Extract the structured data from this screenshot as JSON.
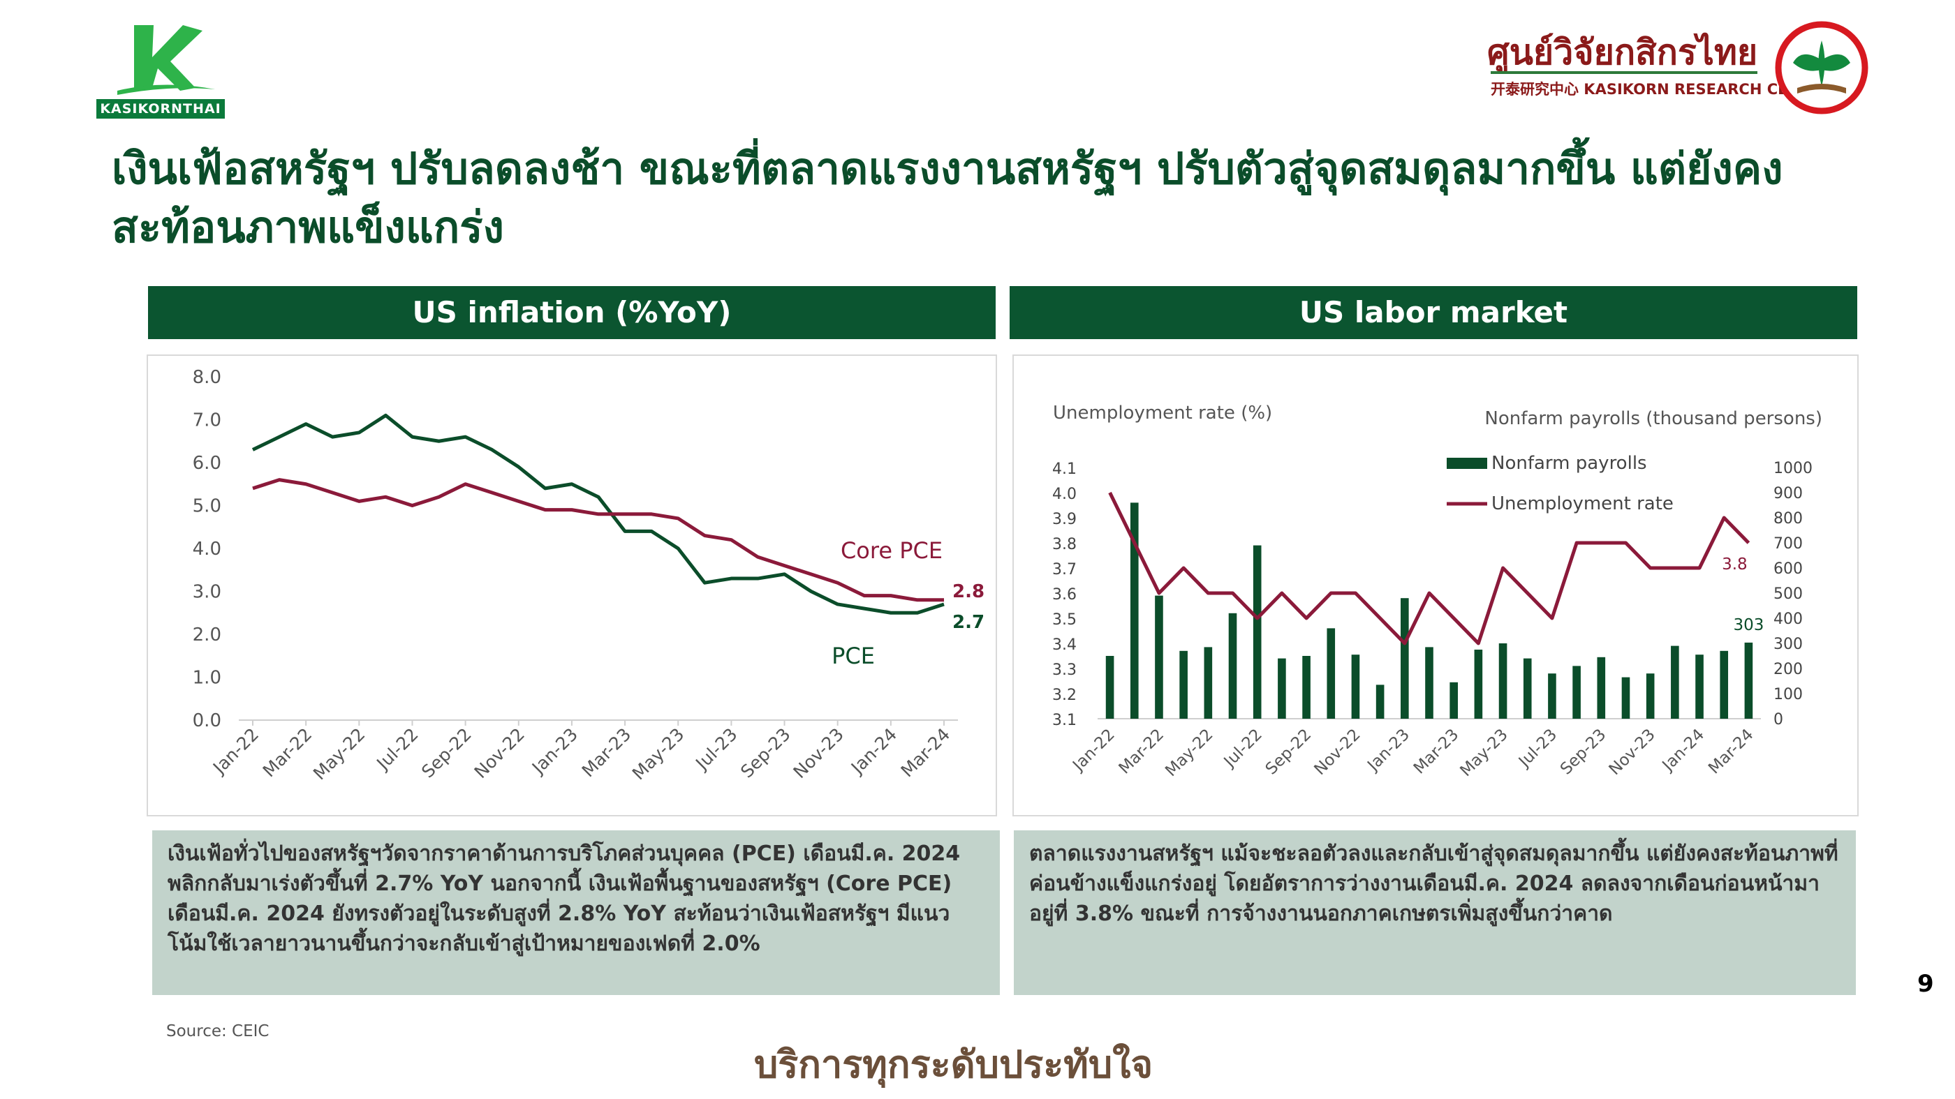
{
  "brand": {
    "left_logo_text": "KASIKORNTHAI",
    "right_logo_title": "ศูนย์วิจัยกสิกรไทย",
    "right_logo_subtitle": "开泰研究中心 KASIKORN RESEARCH CENTER",
    "green": "#0b5530",
    "dark_red": "#8b1a1a"
  },
  "headline": "เงินเฟ้อสหรัฐฯ ปรับลดลงช้า ขณะที่ตลาดแรงงานสหรัฐฯ ปรับตัวสู่จุดสมดุลมากขึ้น แต่ยังคงสะท้อนภาพแข็งแกร่ง",
  "panels": {
    "inflation": {
      "header": "US inflation (%YoY)",
      "note": "เงินเฟ้อทั่วไปของสหรัฐฯวัดจากราคาด้านการบริโภคส่วนบุคคล (PCE)  เดือนมี.ค. 2024 พลิกกลับมาเร่งตัวขึ้นที่ 2.7% YoY   นอกจากนี้ เงินเฟ้อพื้นฐานของสหรัฐฯ (Core PCE) เดือนมี.ค. 2024 ยังทรงตัวอยู่ในระดับสูงที่ 2.8% YoY  สะท้อนว่าเงินเฟ้อสหรัฐฯ มีแนวโน้มใช้เวลายาวนานขึ้นกว่าจะกลับเข้าสู่เป้าหมายของเฟดที่ 2.0%"
    },
    "labor": {
      "header": "US labor market",
      "note": "ตลาดแรงงานสหรัฐฯ แม้จะชะลอตัวลงและกลับเข้าสู่จุดสมดุลมากขึ้น แต่ยังคงสะท้อนภาพที่ค่อนข้างแข็งแกร่งอยู่ โดยอัตราการว่างงานเดือนมี.ค. 2024 ลดลงจากเดือนก่อนหน้ามาอยู่ที่ 3.8%   ขณะที่ การจ้างงานนอกภาคเกษตรเพิ่มสูงขึ้นกว่าคาด"
    }
  },
  "chart_data": [
    {
      "type": "line",
      "months": [
        "Jan-22",
        "Feb-22",
        "Mar-22",
        "Apr-22",
        "May-22",
        "Jun-22",
        "Jul-22",
        "Aug-22",
        "Sep-22",
        "Oct-22",
        "Nov-22",
        "Dec-22",
        "Jan-23",
        "Feb-23",
        "Mar-23",
        "Apr-23",
        "May-23",
        "Jun-23",
        "Jul-23",
        "Aug-23",
        "Sep-23",
        "Oct-23",
        "Nov-23",
        "Dec-23",
        "Jan-24",
        "Feb-24",
        "Mar-24"
      ],
      "tick_labels": [
        "Jan-22",
        "Mar-22",
        "May-22",
        "Jul-22",
        "Sep-22",
        "Nov-22",
        "Jan-23",
        "Mar-23",
        "May-23",
        "Jul-23",
        "Sep-23",
        "Nov-23",
        "Jan-24",
        "Mar-24"
      ],
      "y_ticks": [
        "0.0",
        "1.0",
        "2.0",
        "3.0",
        "4.0",
        "5.0",
        "6.0",
        "7.0",
        "8.0"
      ],
      "ylim": [
        0,
        8
      ],
      "series": [
        {
          "name": "PCE",
          "color": "#0b4d2a",
          "end_label": "2.7",
          "values": [
            6.3,
            6.6,
            6.9,
            6.6,
            6.7,
            7.1,
            6.6,
            6.5,
            6.6,
            6.3,
            5.9,
            5.4,
            5.5,
            5.2,
            4.4,
            4.4,
            4.0,
            3.2,
            3.3,
            3.3,
            3.4,
            3.0,
            2.7,
            2.6,
            2.5,
            2.5,
            2.7
          ]
        },
        {
          "name": "Core PCE",
          "color": "#8b1a3a",
          "end_label": "2.8",
          "values": [
            5.4,
            5.6,
            5.5,
            5.3,
            5.1,
            5.2,
            5.0,
            5.2,
            5.5,
            5.3,
            5.1,
            4.9,
            4.9,
            4.8,
            4.8,
            4.8,
            4.7,
            4.3,
            4.2,
            3.8,
            3.6,
            3.4,
            3.2,
            2.9,
            2.9,
            2.8,
            2.8
          ]
        }
      ]
    },
    {
      "type": "bar+line",
      "left_axis_title": "Unemployment rate (%)",
      "right_axis_title": "Nonfarm payrolls (thousand persons)",
      "months": [
        "Jan-22",
        "Feb-22",
        "Mar-22",
        "Apr-22",
        "May-22",
        "Jun-22",
        "Jul-22",
        "Aug-22",
        "Sep-22",
        "Oct-22",
        "Nov-22",
        "Dec-22",
        "Jan-23",
        "Feb-23",
        "Mar-23",
        "Apr-23",
        "May-23",
        "Jun-23",
        "Jul-23",
        "Aug-23",
        "Sep-23",
        "Oct-23",
        "Nov-23",
        "Dec-23",
        "Jan-24",
        "Feb-24",
        "Mar-24"
      ],
      "tick_labels": [
        "Jan-22",
        "Mar-22",
        "May-22",
        "Jul-22",
        "Sep-22",
        "Nov-22",
        "Jan-23",
        "Mar-23",
        "May-23",
        "Jul-23",
        "Sep-23",
        "Nov-23",
        "Jan-24",
        "Mar-24"
      ],
      "left_ticks": [
        "3.1",
        "3.2",
        "3.3",
        "3.4",
        "3.5",
        "3.6",
        "3.7",
        "3.8",
        "3.9",
        "4.0",
        "4.1"
      ],
      "right_ticks": [
        "0",
        "100",
        "200",
        "300",
        "400",
        "500",
        "600",
        "700",
        "800",
        "900",
        "1000"
      ],
      "ylim_left": [
        3.1,
        4.1
      ],
      "ylim_right": [
        0,
        1000
      ],
      "legend": [
        "Nonfarm payrolls",
        "Unemployment rate"
      ],
      "bar_series": {
        "name": "Nonfarm payrolls",
        "color": "#0b4d2a",
        "end_label": "303",
        "values": [
          250,
          860,
          490,
          270,
          285,
          420,
          690,
          240,
          250,
          360,
          255,
          135,
          480,
          285,
          145,
          275,
          300,
          240,
          180,
          210,
          245,
          165,
          180,
          290,
          255,
          270,
          303
        ]
      },
      "line_series": {
        "name": "Unemployment rate",
        "color": "#8b1a3a",
        "end_label": "3.8",
        "values": [
          4.0,
          3.8,
          3.6,
          3.7,
          3.6,
          3.6,
          3.5,
          3.6,
          3.5,
          3.6,
          3.6,
          3.5,
          3.4,
          3.6,
          3.5,
          3.4,
          3.7,
          3.6,
          3.5,
          3.8,
          3.8,
          3.8,
          3.7,
          3.7,
          3.7,
          3.9,
          3.8
        ]
      }
    }
  ],
  "source": "Source: CEIC",
  "tagline": "บริการทุกระดับประทับใจ",
  "page_number": "9"
}
